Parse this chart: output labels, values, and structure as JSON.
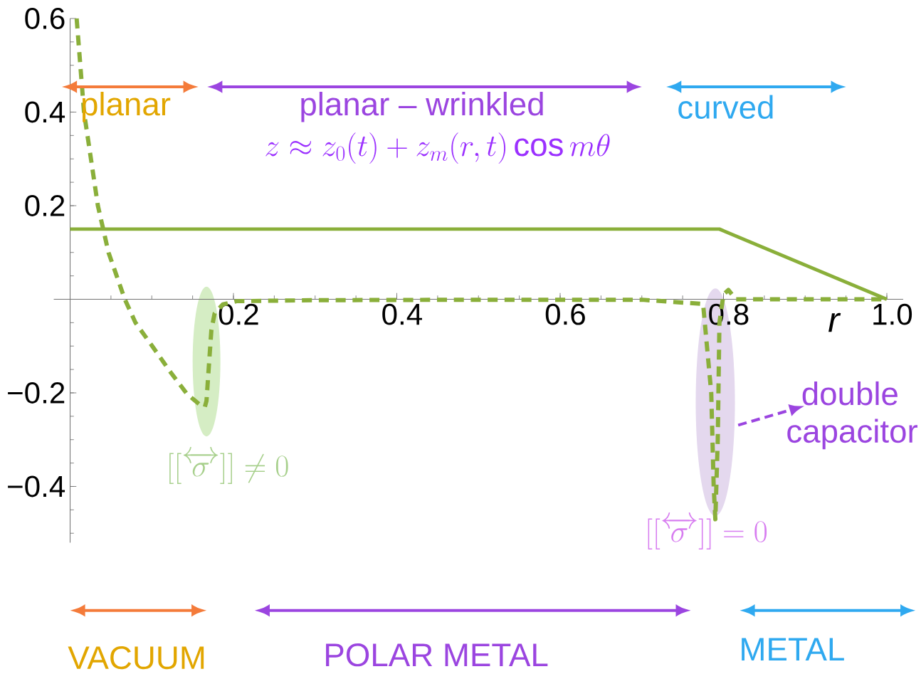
{
  "chart_data": {
    "type": "line",
    "xlabel": "r",
    "xlim": [
      -0.02,
      1.02
    ],
    "ylim": [
      -0.52,
      0.6
    ],
    "xticks": [
      0.2,
      0.4,
      0.6,
      0.8,
      {
        "value": 1.0,
        "label": "1.0"
      }
    ],
    "yticks": [
      {
        "value": -0.4,
        "label": "−0.4"
      },
      {
        "value": -0.2,
        "label": "−0.2"
      },
      0.2,
      0.4,
      0.6
    ],
    "series": [
      {
        "color": "#8aaf3a",
        "line_style": "dashed",
        "x": [
          0.008,
          0.017,
          0.034,
          0.047,
          0.067,
          0.08,
          0.103,
          0.123,
          0.143,
          0.16,
          0.165,
          0.167,
          0.17,
          0.173,
          0.177,
          0.187,
          0.204,
          0.3,
          0.5,
          0.7,
          0.775,
          0.785,
          0.788,
          0.79,
          0.793,
          0.795,
          0.8,
          0.806,
          0.815,
          1.0
        ],
        "values": [
          0.6,
          0.4,
          0.2,
          0.1,
          0,
          -0.05,
          -0.106,
          -0.156,
          -0.202,
          -0.227,
          -0.23,
          -0.217,
          -0.14,
          -0.065,
          -0.03,
          -0.011,
          -0.004,
          -0.002,
          -0.001,
          -0.001,
          -0.01,
          -0.2,
          -0.4,
          -0.47,
          -0.3,
          -0.05,
          0.01,
          0.02,
          0,
          0
        ]
      },
      {
        "color": "#8aaf3a",
        "line_style": "solid",
        "x": [
          0,
          0.795,
          1.0
        ],
        "values": [
          0.15,
          0.15,
          0
        ]
      }
    ],
    "annotations": [
      "planar",
      "planar – wrinkled",
      "z \\approx z_0(t) + z_m(r,t)\\cos m\\theta",
      "curved",
      "[[\\overleftrightarrow{\\sigma}]] \\neq 0",
      "double capacitor",
      "[[\\overleftrightarrow{\\sigma}]] = 0",
      "VACUUM",
      "POLAR METAL",
      "METAL"
    ]
  }
}
